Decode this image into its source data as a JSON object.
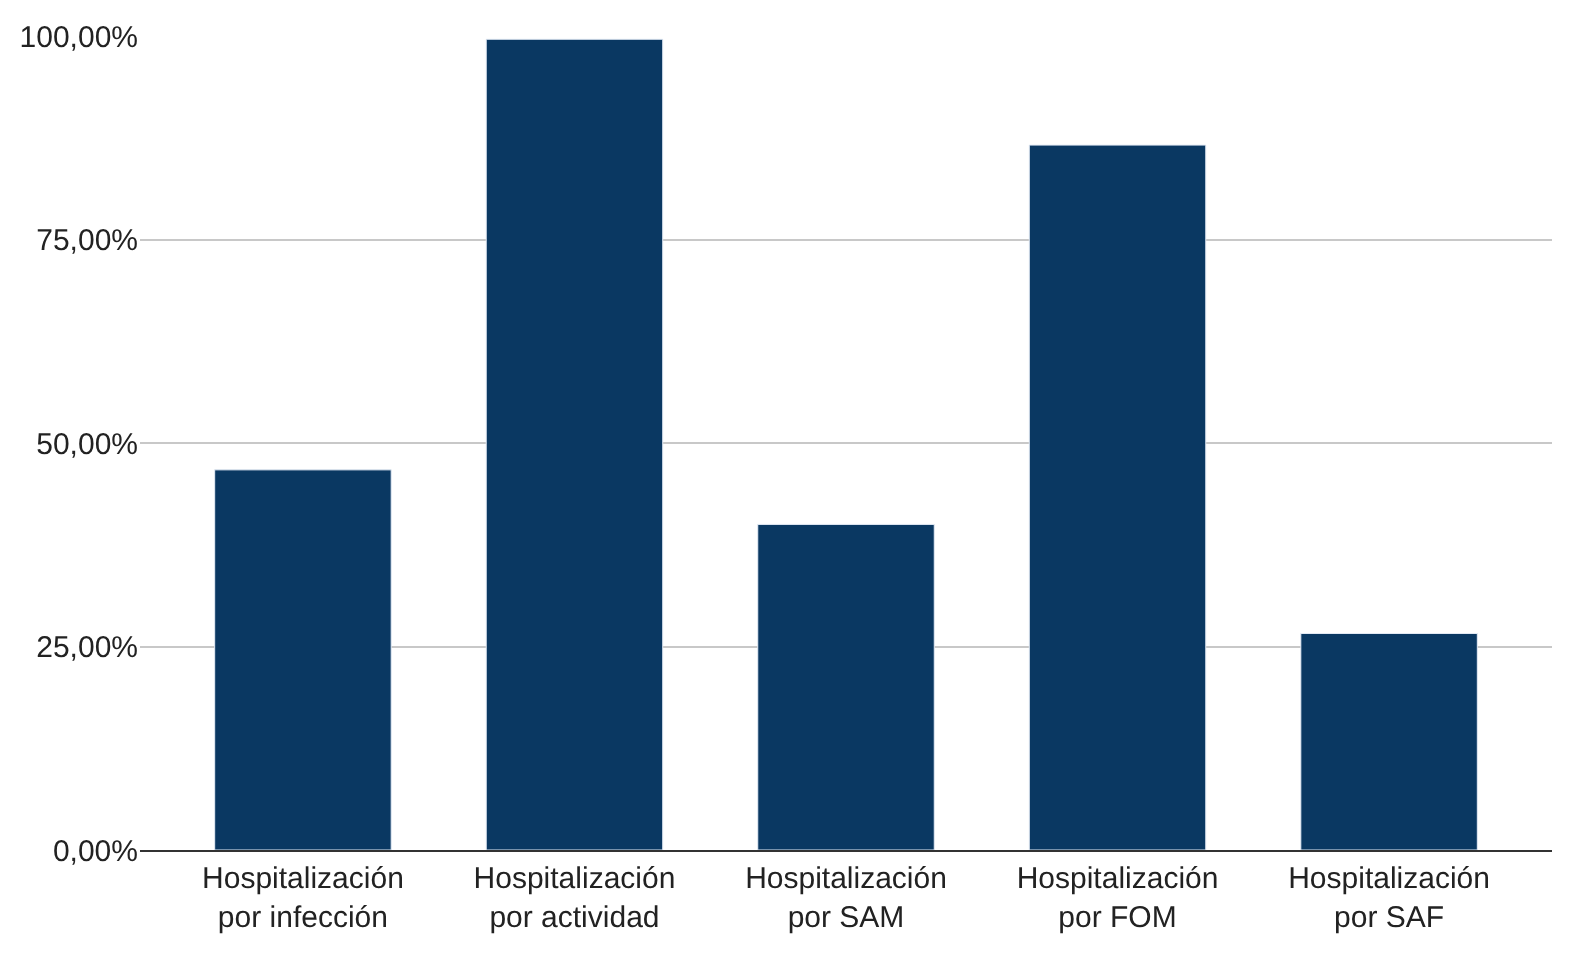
{
  "chart_data": {
    "type": "bar",
    "categories": [
      "Hospitalización\npor infección",
      "Hospitalización\npor actividad",
      "Hospitalización\npor SAM",
      "Hospitalización\npor FOM",
      "Hospitalización\npor SAF"
    ],
    "values": [
      46.7,
      99.6,
      40.0,
      86.6,
      26.6
    ],
    "color": "#0a3862",
    "ylim": [
      0,
      100
    ],
    "yticks": [
      {
        "value": 0,
        "label": "0,00%"
      },
      {
        "value": 25,
        "label": "25,00%"
      },
      {
        "value": 50,
        "label": "50,00%"
      },
      {
        "value": 75,
        "label": "75,00%"
      },
      {
        "value": 100,
        "label": "100,00%"
      }
    ],
    "grid": "y"
  }
}
